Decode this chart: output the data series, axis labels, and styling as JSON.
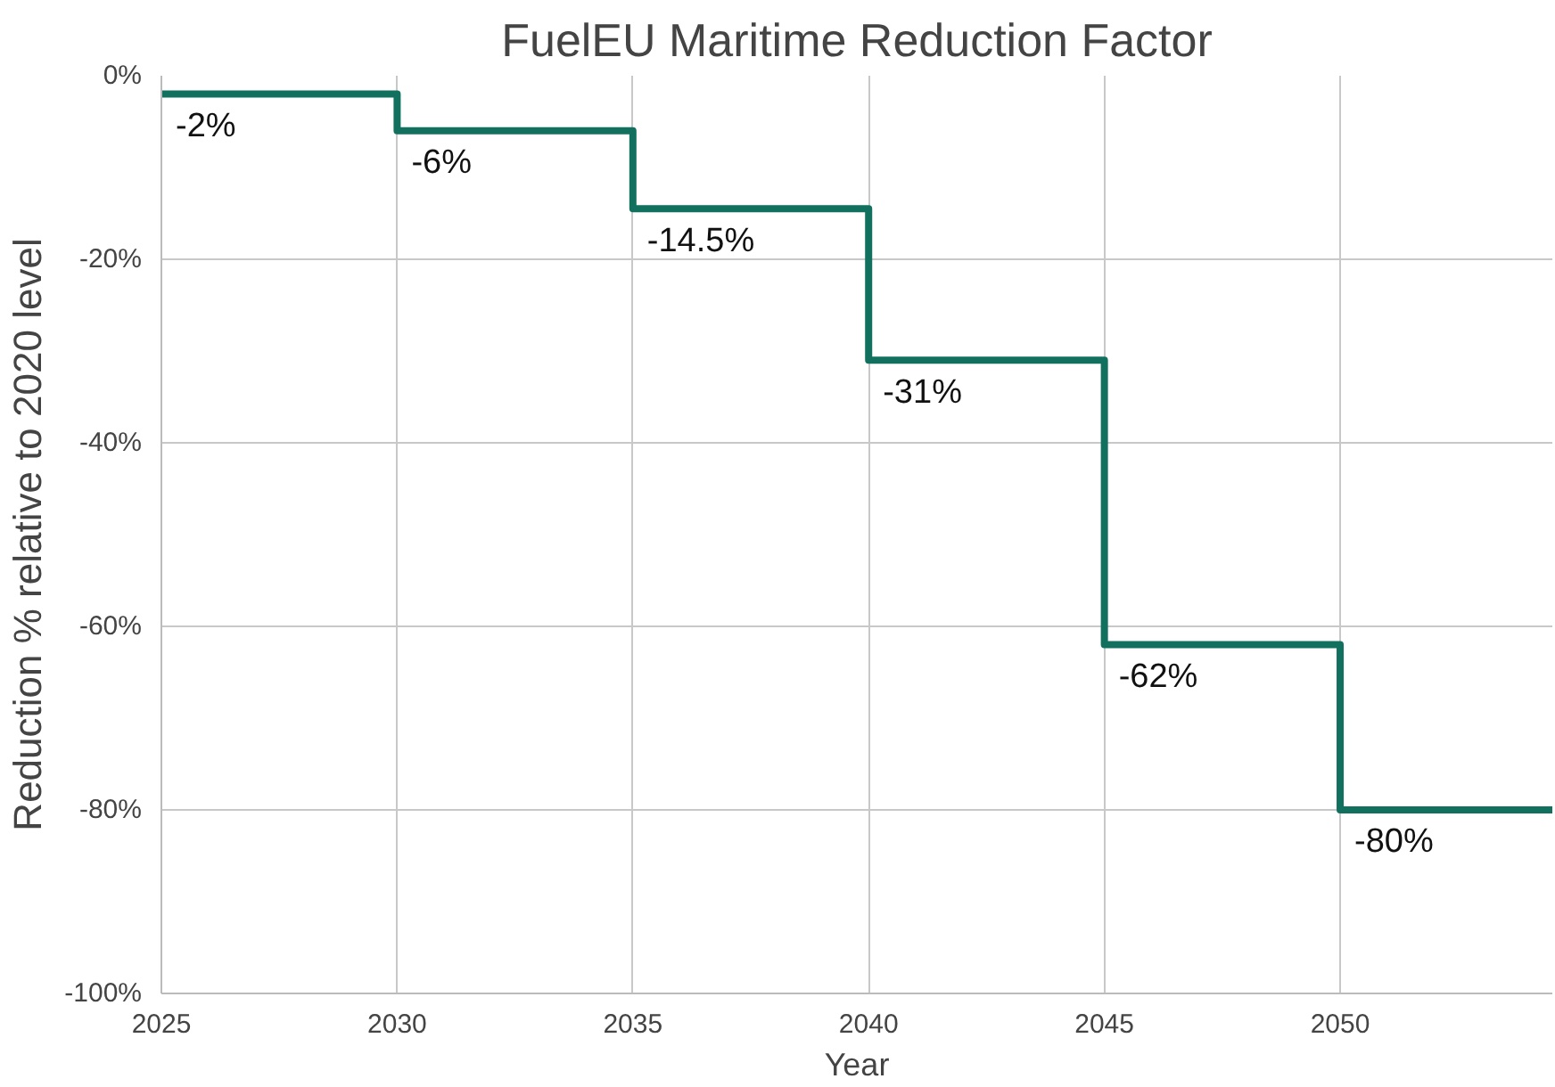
{
  "chart_data": {
    "type": "step",
    "title": "FuelEU Maritime Reduction Factor",
    "xlabel": "Year",
    "ylabel": "Reduction % relative to 2020 level",
    "x": [
      2025,
      2030,
      2035,
      2040,
      2045,
      2050,
      2054.5
    ],
    "series": [
      {
        "color": "#11705e",
        "values": [
          -2,
          -6,
          -14.5,
          -31,
          -62,
          -80,
          -80
        ],
        "value_labels": [
          "-2%",
          "-6%",
          "-14.5%",
          "-31%",
          "-62%",
          "-80%",
          null
        ]
      }
    ],
    "xlim": [
      2025,
      2054.5
    ],
    "xticks": [
      2025,
      2030,
      2035,
      2040,
      2045,
      2050
    ],
    "ylim": [
      -100,
      0
    ],
    "yticks": [
      {
        "value": 0,
        "label": "0%"
      },
      {
        "value": -20,
        "label": "-20%"
      },
      {
        "value": -40,
        "label": "-40%"
      },
      {
        "value": -60,
        "label": "-60%"
      },
      {
        "value": -80,
        "label": "-80%"
      },
      {
        "value": -100,
        "label": "-100%"
      }
    ],
    "grid": true,
    "line_style": "solid"
  }
}
